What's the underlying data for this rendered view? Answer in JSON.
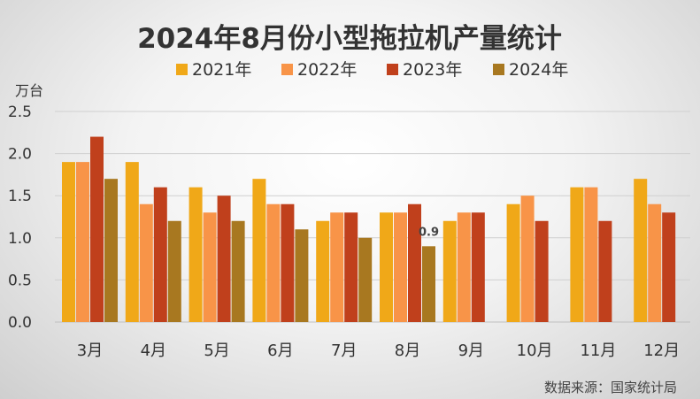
{
  "chart_data": {
    "type": "bar",
    "title": "2024年8月份小型拖拉机产量统计",
    "unit_label": "万台",
    "source": "数据来源：国家统计局",
    "categories": [
      "3月",
      "4月",
      "5月",
      "6月",
      "7月",
      "8月",
      "9月",
      "10月",
      "11月",
      "12月"
    ],
    "series": [
      {
        "name": "2021年",
        "color": "#F0A818",
        "values": [
          1.9,
          1.9,
          1.6,
          1.7,
          1.2,
          1.3,
          1.2,
          1.4,
          1.6,
          1.7
        ]
      },
      {
        "name": "2022年",
        "color": "#F89448",
        "values": [
          1.9,
          1.4,
          1.3,
          1.4,
          1.3,
          1.3,
          1.3,
          1.5,
          1.6,
          1.4
        ]
      },
      {
        "name": "2023年",
        "color": "#C0401C",
        "values": [
          2.2,
          1.6,
          1.5,
          1.4,
          1.3,
          1.4,
          1.3,
          1.2,
          1.2,
          1.3
        ]
      },
      {
        "name": "2024年",
        "color": "#A87820",
        "values": [
          1.7,
          1.2,
          1.2,
          1.1,
          1.0,
          0.9,
          null,
          null,
          null,
          null
        ]
      }
    ],
    "y_ticks": [
      "0.0",
      "0.5",
      "1.0",
      "1.5",
      "2.0",
      "2.5"
    ],
    "ylim": [
      0,
      2.5
    ],
    "grid": true,
    "legend_position": "top",
    "annotations": [
      {
        "category": "8月",
        "series": "2024年",
        "text": "0.9"
      }
    ],
    "xlabel": "",
    "ylabel": ""
  }
}
